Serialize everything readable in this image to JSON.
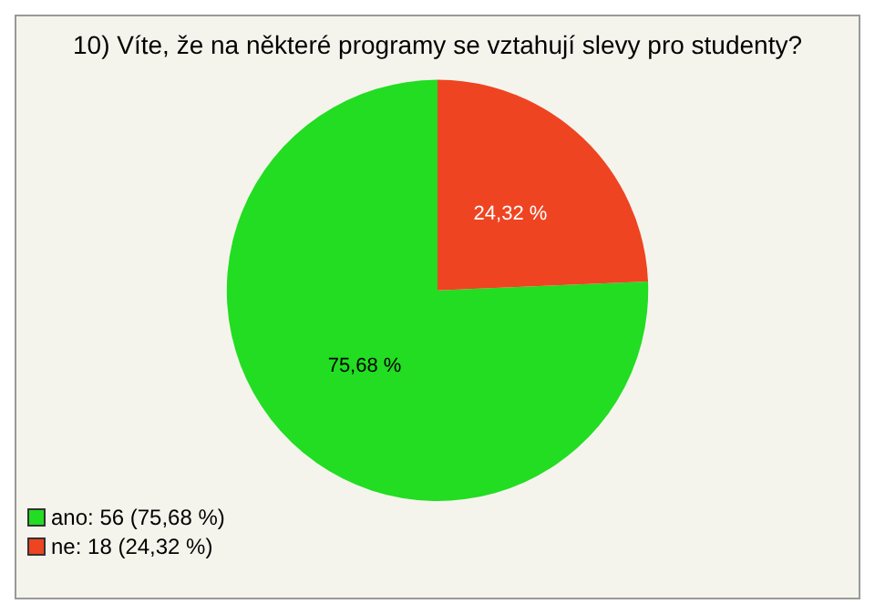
{
  "chart_data": {
    "type": "pie",
    "title": "10) Víte, že na některé programy se vztahují slevy pro studenty?",
    "categories": [
      "ano: 56 (75,68 %)",
      "ne: 18 (24,32 %)"
    ],
    "values": [
      75.68,
      24.32
    ],
    "value_labels": [
      "75,68 %",
      "24,32 %"
    ],
    "colors": [
      "#22dd22",
      "#ee4422"
    ],
    "legend": "bottom left"
  }
}
